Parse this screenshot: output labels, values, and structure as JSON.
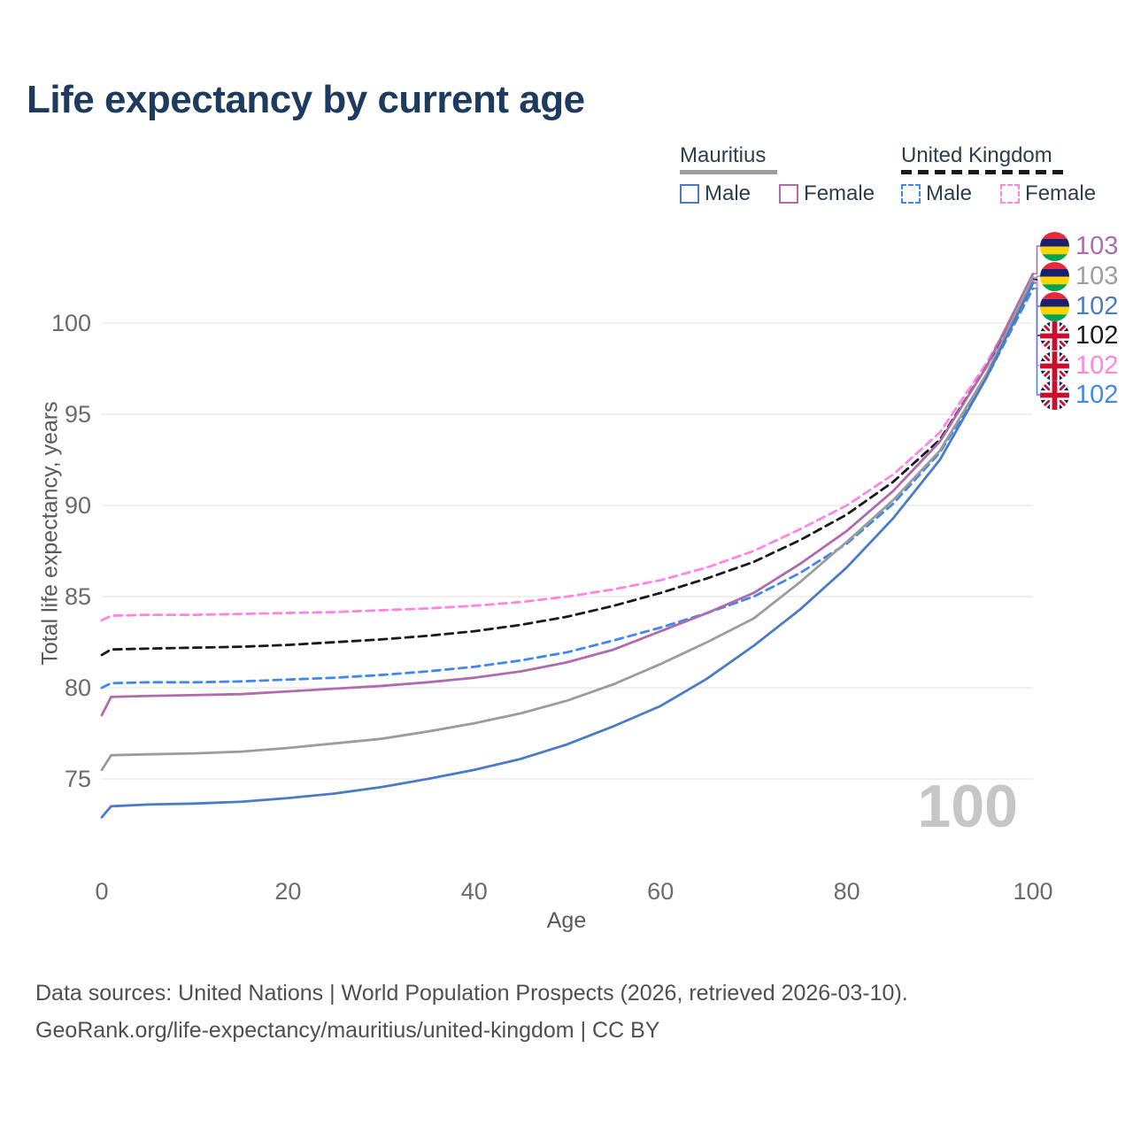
{
  "title": "Life expectancy by current age",
  "watermark": "100",
  "legend": {
    "groups": [
      {
        "name": "Mauritius",
        "style": "solid",
        "items": [
          {
            "label": "Male"
          },
          {
            "label": "Female"
          }
        ]
      },
      {
        "name": "United Kingdom",
        "style": "dashed",
        "items": [
          {
            "label": "Male"
          },
          {
            "label": "Female"
          }
        ]
      }
    ]
  },
  "colors": {
    "title": "#1d3b5e",
    "grid": "#e8e8e8",
    "tick": "#6b6b6b",
    "axis_title": "#5a5a5a",
    "watermark": "#c6c6c6",
    "mu_male": "#4a7bc4",
    "mu_female": "#b06bae",
    "mu_both": "#9c9c9c",
    "uk_male": "#4187f0",
    "uk_female": "#ff85e3",
    "uk_both": "#1a1a1a"
  },
  "chart_data": {
    "type": "line",
    "title": "Life expectancy by current age",
    "xlabel": "Age",
    "ylabel": "Total life expectancy, years",
    "xlim": [
      0,
      100
    ],
    "ylim": [
      72,
      104
    ],
    "x_ticks": [
      0,
      20,
      40,
      60,
      80,
      100
    ],
    "y_ticks": [
      75,
      80,
      85,
      90,
      95,
      100
    ],
    "grid": true,
    "legend_position": "top-right",
    "x": [
      0,
      1,
      5,
      10,
      15,
      20,
      25,
      30,
      35,
      40,
      45,
      50,
      55,
      60,
      65,
      70,
      75,
      80,
      85,
      90,
      95,
      100
    ],
    "series": [
      {
        "id": "uk_female",
        "name": "United Kingdom Female",
        "color": "#ff85e3",
        "dash": "dashed",
        "values": [
          83.7,
          83.95,
          84.0,
          84.0,
          84.05,
          84.1,
          84.15,
          84.25,
          84.35,
          84.5,
          84.7,
          85.0,
          85.4,
          85.9,
          86.6,
          87.5,
          88.7,
          90.0,
          91.7,
          94.0,
          97.8,
          102.3
        ]
      },
      {
        "id": "uk_both",
        "name": "United Kingdom Both sexes",
        "color": "#1a1a1a",
        "dash": "dashed",
        "values": [
          81.8,
          82.1,
          82.15,
          82.2,
          82.25,
          82.35,
          82.5,
          82.65,
          82.85,
          83.1,
          83.45,
          83.9,
          84.5,
          85.2,
          86.0,
          86.9,
          88.1,
          89.5,
          91.3,
          93.6,
          97.6,
          102.4
        ]
      },
      {
        "id": "uk_male",
        "name": "United Kingdom Male",
        "color": "#4187f0",
        "dash": "dashed",
        "values": [
          80.0,
          80.25,
          80.3,
          80.3,
          80.35,
          80.45,
          80.55,
          80.7,
          80.9,
          81.15,
          81.5,
          81.95,
          82.6,
          83.3,
          84.1,
          85.0,
          86.3,
          87.9,
          90.1,
          92.9,
          97.0,
          101.9
        ]
      },
      {
        "id": "mu_female",
        "name": "Mauritius Female",
        "color": "#b06bae",
        "dash": "solid",
        "values": [
          78.5,
          79.5,
          79.55,
          79.6,
          79.65,
          79.8,
          79.95,
          80.1,
          80.3,
          80.55,
          80.9,
          81.4,
          82.1,
          83.1,
          84.1,
          85.2,
          86.8,
          88.6,
          90.8,
          93.5,
          97.6,
          102.7
        ]
      },
      {
        "id": "mu_both",
        "name": "Mauritius Both sexes",
        "color": "#9c9c9c",
        "dash": "solid",
        "values": [
          75.5,
          76.3,
          76.35,
          76.4,
          76.5,
          76.7,
          76.95,
          77.2,
          77.6,
          78.05,
          78.6,
          79.3,
          80.2,
          81.3,
          82.5,
          83.8,
          85.8,
          88.0,
          90.3,
          93.0,
          97.2,
          102.5
        ]
      },
      {
        "id": "mu_male",
        "name": "Mauritius Male",
        "color": "#4a7bc4",
        "dash": "solid",
        "values": [
          72.9,
          73.5,
          73.6,
          73.65,
          73.75,
          73.95,
          74.2,
          74.55,
          75.0,
          75.5,
          76.1,
          76.9,
          77.9,
          79.0,
          80.5,
          82.3,
          84.3,
          86.6,
          89.3,
          92.5,
          97.0,
          102.2
        ]
      }
    ]
  },
  "end_labels": {
    "items": [
      {
        "value": "103",
        "color": "#b06bae",
        "flag": "mauritius",
        "series": "mu_female"
      },
      {
        "value": "103",
        "color": "#9e9e9e",
        "flag": "mauritius",
        "series": "mu_both"
      },
      {
        "value": "102",
        "color": "#4a7bc4",
        "flag": "mauritius",
        "series": "mu_male"
      },
      {
        "value": "102",
        "color": "#1a1a1a",
        "flag": "uk",
        "series": "uk_both"
      },
      {
        "value": "102",
        "color": "#ff85e3",
        "flag": "uk",
        "series": "uk_female"
      },
      {
        "value": "102",
        "color": "#4187f0",
        "flag": "uk",
        "series": "uk_male"
      }
    ]
  },
  "footer": {
    "line1": "Data sources: United Nations | World Population Prospects (2026, retrieved 2026-03-10).",
    "line2": "GeoRank.org/life-expectancy/mauritius/united-kingdom | CC BY"
  }
}
